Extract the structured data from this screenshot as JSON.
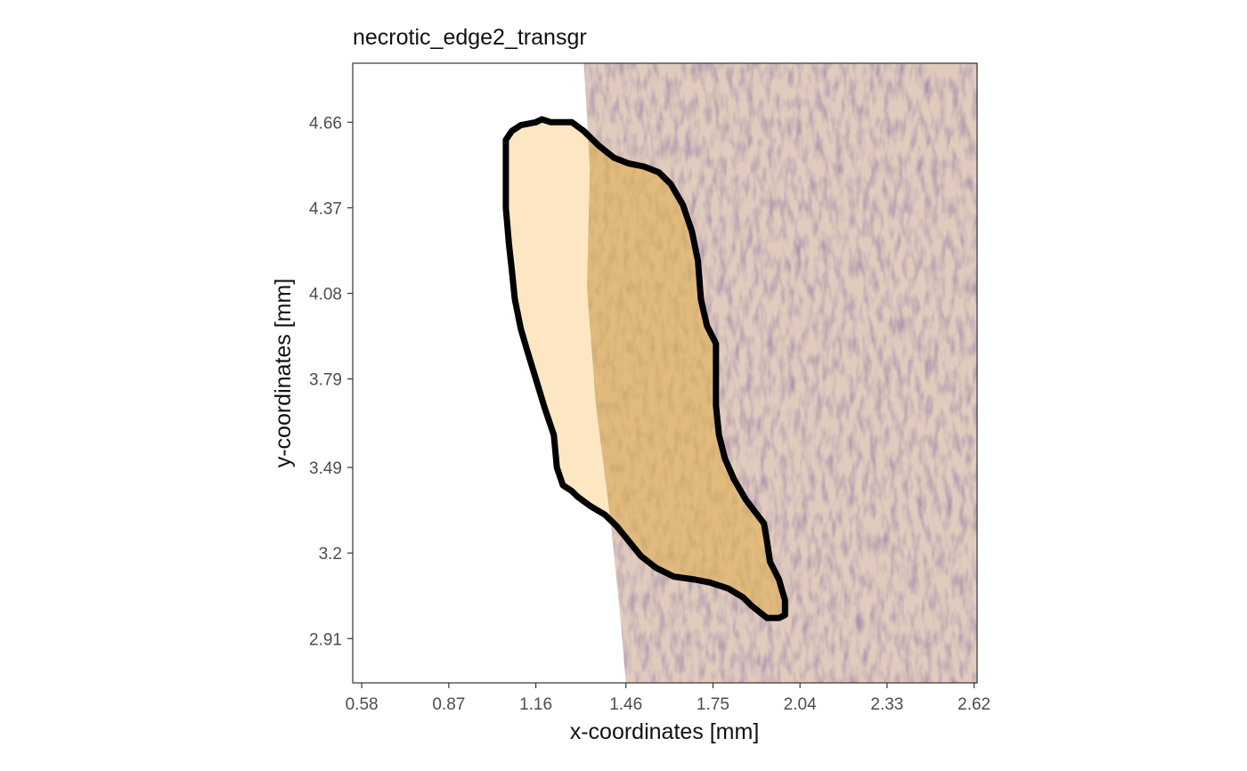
{
  "chart_data": {
    "type": "spatial-image",
    "title": "necrotic_edge2_transgr",
    "xlabel": "x-coordinates [mm]",
    "ylabel": "y-coordinates [mm]",
    "xlim": [
      0.55,
      2.63
    ],
    "ylim": [
      2.76,
      4.86
    ],
    "x_ticks": [
      {
        "value": 0.58,
        "label": "0.58"
      },
      {
        "value": 0.87,
        "label": "0.87"
      },
      {
        "value": 1.16,
        "label": "1.16"
      },
      {
        "value": 1.46,
        "label": "1.46"
      },
      {
        "value": 1.75,
        "label": "1.75"
      },
      {
        "value": 2.04,
        "label": "2.04"
      },
      {
        "value": 2.33,
        "label": "2.33"
      },
      {
        "value": 2.62,
        "label": "2.62"
      }
    ],
    "y_ticks": [
      {
        "value": 2.91,
        "label": "2.91"
      },
      {
        "value": 3.2,
        "label": "3.2"
      },
      {
        "value": 3.49,
        "label": "3.49"
      },
      {
        "value": 3.79,
        "label": "3.79"
      },
      {
        "value": 4.08,
        "label": "4.08"
      },
      {
        "value": 4.37,
        "label": "4.37"
      },
      {
        "value": 4.66,
        "label": "4.66"
      }
    ],
    "grid": false,
    "tissue_left_edge": [
      [
        1.32,
        4.86
      ],
      [
        1.34,
        4.5
      ],
      [
        1.33,
        4.1
      ],
      [
        1.36,
        3.7
      ],
      [
        1.41,
        3.3
      ],
      [
        1.44,
        3.0
      ],
      [
        1.46,
        2.76
      ]
    ],
    "tissue_right_x": 2.63,
    "highlight_region": {
      "fill": "#f4d9a3",
      "outline": "#000000",
      "polygon": [
        [
          1.16,
          4.66
        ],
        [
          1.18,
          4.67
        ],
        [
          1.21,
          4.66
        ],
        [
          1.28,
          4.66
        ],
        [
          1.32,
          4.63
        ],
        [
          1.37,
          4.58
        ],
        [
          1.42,
          4.54
        ],
        [
          1.47,
          4.52
        ],
        [
          1.52,
          4.51
        ],
        [
          1.57,
          4.49
        ],
        [
          1.61,
          4.45
        ],
        [
          1.65,
          4.38
        ],
        [
          1.68,
          4.29
        ],
        [
          1.7,
          4.19
        ],
        [
          1.71,
          4.06
        ],
        [
          1.73,
          3.97
        ],
        [
          1.76,
          3.91
        ],
        [
          1.76,
          3.83
        ],
        [
          1.76,
          3.7
        ],
        [
          1.77,
          3.6
        ],
        [
          1.79,
          3.52
        ],
        [
          1.82,
          3.45
        ],
        [
          1.86,
          3.38
        ],
        [
          1.89,
          3.34
        ],
        [
          1.92,
          3.3
        ],
        [
          1.93,
          3.24
        ],
        [
          1.94,
          3.17
        ],
        [
          1.97,
          3.11
        ],
        [
          1.99,
          3.04
        ],
        [
          1.99,
          2.99
        ],
        [
          1.97,
          2.98
        ],
        [
          1.93,
          2.98
        ],
        [
          1.88,
          3.02
        ],
        [
          1.85,
          3.05
        ],
        [
          1.8,
          3.08
        ],
        [
          1.74,
          3.1
        ],
        [
          1.69,
          3.11
        ],
        [
          1.62,
          3.12
        ],
        [
          1.56,
          3.15
        ],
        [
          1.51,
          3.19
        ],
        [
          1.47,
          3.24
        ],
        [
          1.43,
          3.29
        ],
        [
          1.39,
          3.33
        ],
        [
          1.34,
          3.36
        ],
        [
          1.3,
          3.39
        ],
        [
          1.28,
          3.41
        ],
        [
          1.25,
          3.43
        ],
        [
          1.23,
          3.49
        ],
        [
          1.22,
          3.6
        ],
        [
          1.19,
          3.69
        ],
        [
          1.16,
          3.79
        ],
        [
          1.13,
          3.89
        ],
        [
          1.11,
          3.96
        ],
        [
          1.09,
          4.06
        ],
        [
          1.08,
          4.16
        ],
        [
          1.07,
          4.25
        ],
        [
          1.06,
          4.37
        ],
        [
          1.06,
          4.45
        ],
        [
          1.06,
          4.54
        ],
        [
          1.06,
          4.6
        ],
        [
          1.08,
          4.63
        ],
        [
          1.11,
          4.65
        ]
      ]
    }
  }
}
